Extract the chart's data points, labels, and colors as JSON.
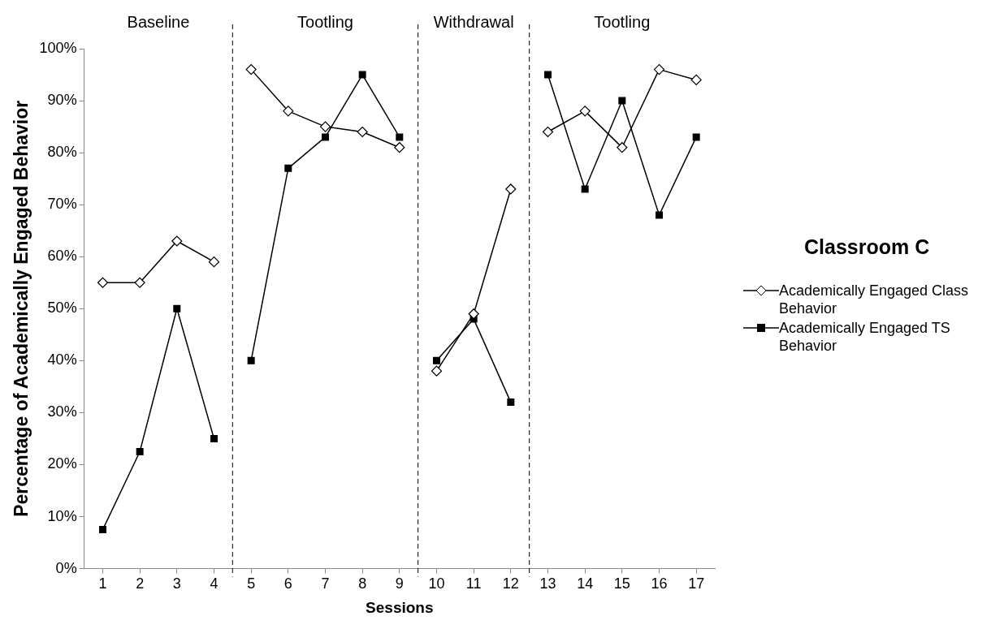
{
  "chart_data": {
    "type": "line",
    "xlabel": "Sessions",
    "ylabel": "Percentage of Academically Engaged Behavior",
    "legend_title": "Classroom C",
    "legend": "right",
    "x": [
      1,
      2,
      3,
      4,
      5,
      6,
      7,
      8,
      9,
      10,
      11,
      12,
      13,
      14,
      15,
      16,
      17
    ],
    "xlim": [
      0.5,
      17.5
    ],
    "xticks": [
      1,
      2,
      3,
      4,
      5,
      6,
      7,
      8,
      9,
      10,
      11,
      12,
      13,
      14,
      15,
      16,
      17
    ],
    "ylim": [
      0,
      100
    ],
    "yticks": [
      {
        "value": 0,
        "label": "0%"
      },
      {
        "value": 10,
        "label": "10%"
      },
      {
        "value": 20,
        "label": "20%"
      },
      {
        "value": 30,
        "label": "30%"
      },
      {
        "value": 40,
        "label": "40%"
      },
      {
        "value": 50,
        "label": "50%"
      },
      {
        "value": 60,
        "label": "60%"
      },
      {
        "value": 70,
        "label": "70%"
      },
      {
        "value": 80,
        "label": "80%"
      },
      {
        "value": 90,
        "label": "90%"
      },
      {
        "value": 100,
        "label": "100%"
      }
    ],
    "grid": false,
    "line_style": "solid",
    "series": [
      {
        "name": "Academically Engaged Class Behavior",
        "color": "#000000",
        "marker": "diamond",
        "values": [
          55,
          55,
          63,
          59,
          null,
          null,
          null,
          null,
          null,
          null,
          null,
          null,
          null,
          null,
          null,
          null,
          null
        ]
      },
      {
        "name": "Academically Engaged TS Behavior",
        "color": "#000000",
        "marker": "square",
        "values": [
          7.5,
          22.5,
          50,
          25,
          null,
          null,
          null,
          null,
          null,
          null,
          null,
          null,
          null,
          null,
          null,
          null,
          null
        ]
      },
      {
        "color": "#000000",
        "marker": "diamond",
        "values": [
          null,
          null,
          null,
          null,
          96,
          88,
          85,
          84,
          81,
          null,
          null,
          null,
          null,
          null,
          null,
          null,
          null
        ]
      },
      {
        "color": "#000000",
        "marker": "square",
        "values": [
          null,
          null,
          null,
          null,
          40,
          77,
          83,
          95,
          83,
          null,
          null,
          null,
          null,
          null,
          null,
          null,
          null
        ]
      },
      {
        "color": "#000000",
        "marker": "diamond",
        "values": [
          null,
          null,
          null,
          null,
          null,
          null,
          null,
          null,
          null,
          38,
          49,
          73,
          null,
          null,
          null,
          null,
          null
        ]
      },
      {
        "color": "#000000",
        "marker": "square",
        "values": [
          null,
          null,
          null,
          null,
          null,
          null,
          null,
          null,
          null,
          40,
          48,
          32,
          null,
          null,
          null,
          null,
          null
        ]
      },
      {
        "color": "#000000",
        "marker": "diamond",
        "values": [
          null,
          null,
          null,
          null,
          null,
          null,
          null,
          null,
          null,
          null,
          null,
          null,
          84,
          88,
          81,
          96,
          94
        ]
      },
      {
        "color": "#000000",
        "marker": "square",
        "values": [
          null,
          null,
          null,
          null,
          null,
          null,
          null,
          null,
          null,
          null,
          null,
          null,
          95,
          73,
          90,
          68,
          83
        ]
      }
    ],
    "ref_lines": [
      {
        "axis": "x",
        "value": 4.5,
        "line_style": "dashed"
      },
      {
        "axis": "x",
        "value": 9.5,
        "line_style": "dashed"
      },
      {
        "axis": "x",
        "value": 12.5,
        "line_style": "dashed"
      }
    ],
    "annotations": [
      "Baseline",
      "Tootling",
      "Withdrawal",
      "Tootling"
    ]
  }
}
